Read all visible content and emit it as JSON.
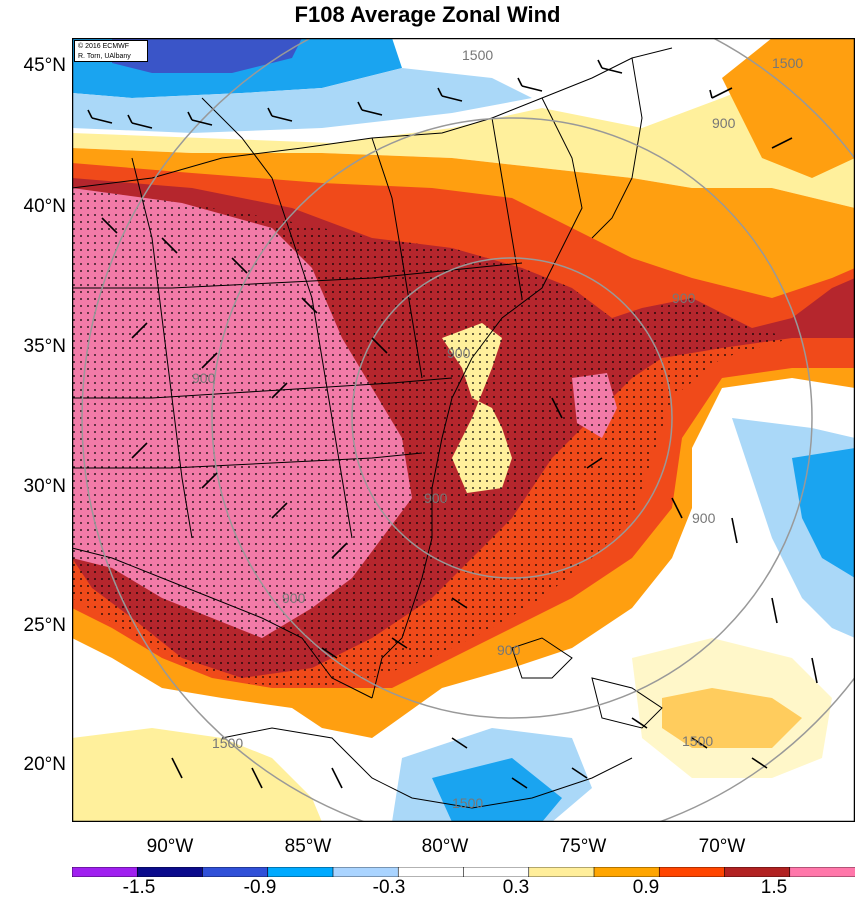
{
  "title": "F108 Average Zonal Wind",
  "credit": {
    "line1": "© 2016 ECMWF",
    "line2": "R. Torn, UAlbany"
  },
  "lat_labels": [
    "45°N",
    "40°N",
    "35°N",
    "30°N",
    "25°N",
    "20°N"
  ],
  "lon_labels": [
    "90°W",
    "85°W",
    "80°W",
    "75°W",
    "70°W"
  ],
  "colorbar": {
    "labels": [
      "-1.5",
      "-0.9",
      "-0.3",
      "0.3",
      "0.9",
      "1.5"
    ],
    "colors": [
      "#a020f0",
      "#0b0b8c",
      "#3050d8",
      "#00aaff",
      "#aad4ff",
      "#ffffff",
      "#ffffff",
      "#ffee9a",
      "#ffa500",
      "#ff4500",
      "#b22222",
      "#ff77aa"
    ]
  },
  "contour_labels": [
    "1500",
    "1500",
    "900",
    "900",
    "900",
    "900",
    "900",
    "900",
    "1500",
    "1500",
    "900",
    "900",
    "1500"
  ],
  "colors": {
    "pink": "#f27ba8",
    "darkred": "#b5262d",
    "red": "#f04a1a",
    "orange": "#ff9f10",
    "yellow": "#fff09c",
    "lightblue": "#aad8f8",
    "blue": "#1aa4f0",
    "darkblue": "#3a55c8"
  }
}
